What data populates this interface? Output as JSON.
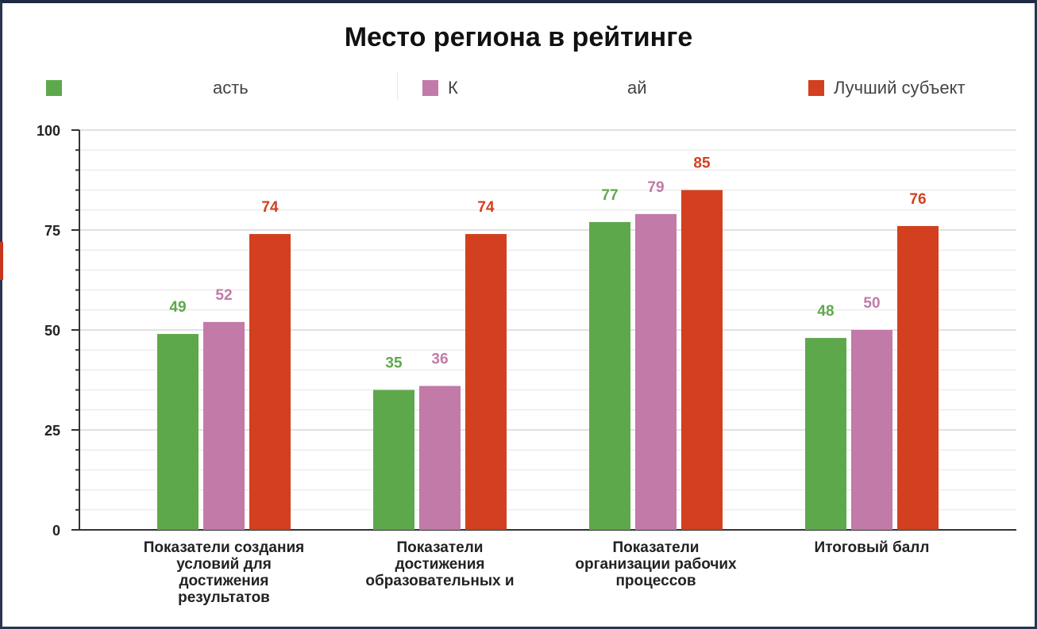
{
  "chart_data": {
    "type": "bar",
    "title": "Место региона в рейтинге",
    "categories": [
      "Показатели создания условий для достижения результатов",
      "Показатели достижения образовательных и",
      "Показатели организации рабочих процессов",
      "Итоговый балл"
    ],
    "series": [
      {
        "name": "асть",
        "color": "#5ea84c",
        "values": [
          49,
          35,
          77,
          48
        ]
      },
      {
        "name": "К … ай",
        "color": "#c27aa8",
        "values": [
          52,
          36,
          79,
          50
        ]
      },
      {
        "name": "Лучший субъект",
        "color": "#d2401f",
        "values": [
          74,
          74,
          85,
          76
        ]
      }
    ],
    "ylim": [
      0,
      100
    ],
    "yticks": [
      0,
      25,
      50,
      75,
      100
    ],
    "grid": true,
    "legend": "top",
    "xlabel": "",
    "ylabel": ""
  },
  "legend_labels": {
    "series1_visible": "асть",
    "series2_prefix": "К",
    "series2_suffix": "ай",
    "series3": "Лучший субъект"
  },
  "category_lines": [
    "Показатели создания\nусловий для\nдостижения\nрезультатов",
    "Показатели\nдостижения\nобразовательных и",
    "Показатели\nорганизации рабочих\nпроцессов",
    "Итоговый балл"
  ]
}
